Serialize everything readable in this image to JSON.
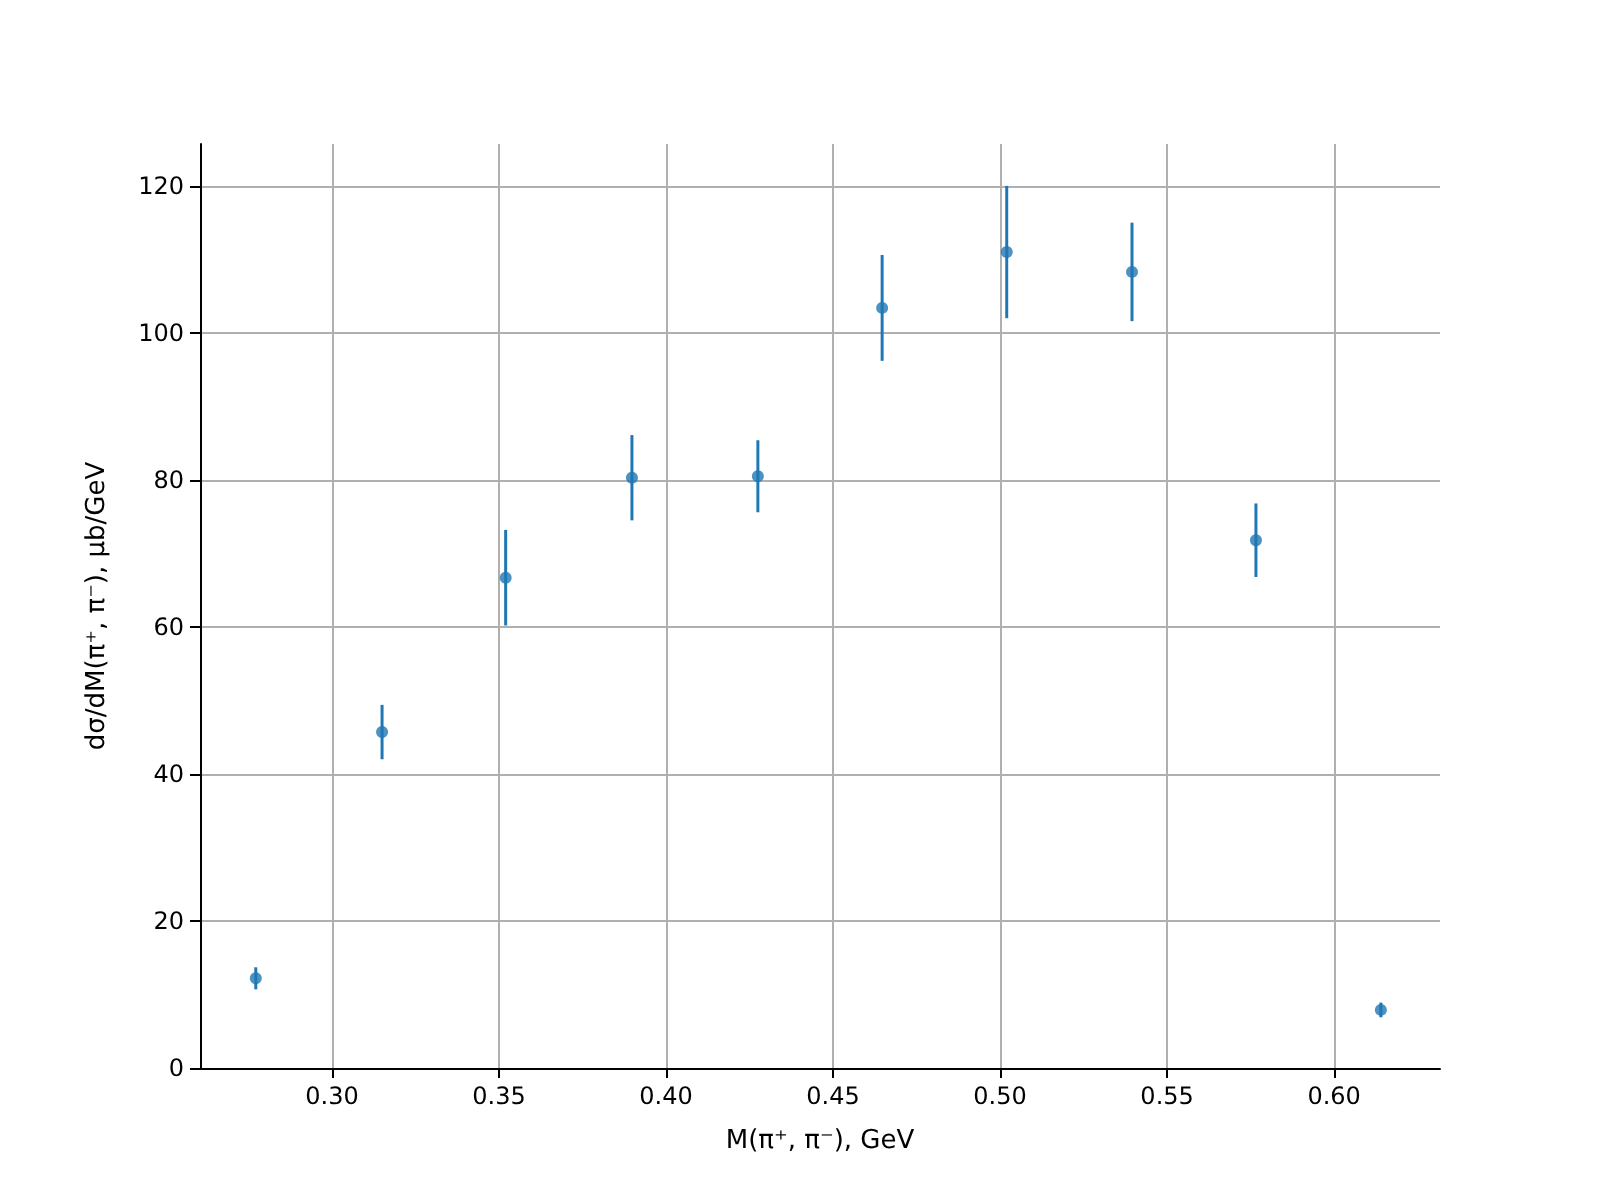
{
  "chart_data": {
    "type": "scatter",
    "xlabel": "M(π⁺, π⁻), GeV",
    "ylabel": "dσ/dM(π⁺, π⁻), μb/GeV",
    "x": [
      0.2772,
      0.315,
      0.352,
      0.3898,
      0.4275,
      0.4647,
      0.502,
      0.5395,
      0.5766,
      0.614
    ],
    "series": [
      {
        "color": "#1f77b4",
        "values": [
          12.2,
          45.7,
          66.7,
          80.3,
          80.5,
          103.4,
          111,
          108.3,
          71.8,
          7.9
        ],
        "errors": [
          1.5,
          3.7,
          6.5,
          5.8,
          4.9,
          7.2,
          9,
          6.7,
          5,
          1
        ]
      }
    ],
    "xlim": [
      0.2605,
      0.6317
    ],
    "ylim": [
      0,
      125.7
    ],
    "xticks": [
      {
        "value": 0.3,
        "label": "0.30"
      },
      {
        "value": 0.35,
        "label": "0.35"
      },
      {
        "value": 0.4,
        "label": "0.40"
      },
      {
        "value": 0.45,
        "label": "0.45"
      },
      {
        "value": 0.5,
        "label": "0.50"
      },
      {
        "value": 0.55,
        "label": "0.55"
      },
      {
        "value": 0.6,
        "label": "0.60"
      }
    ],
    "yticks": [
      0,
      20,
      40,
      60,
      80,
      100,
      120
    ],
    "grid": true,
    "marker": "circle"
  }
}
